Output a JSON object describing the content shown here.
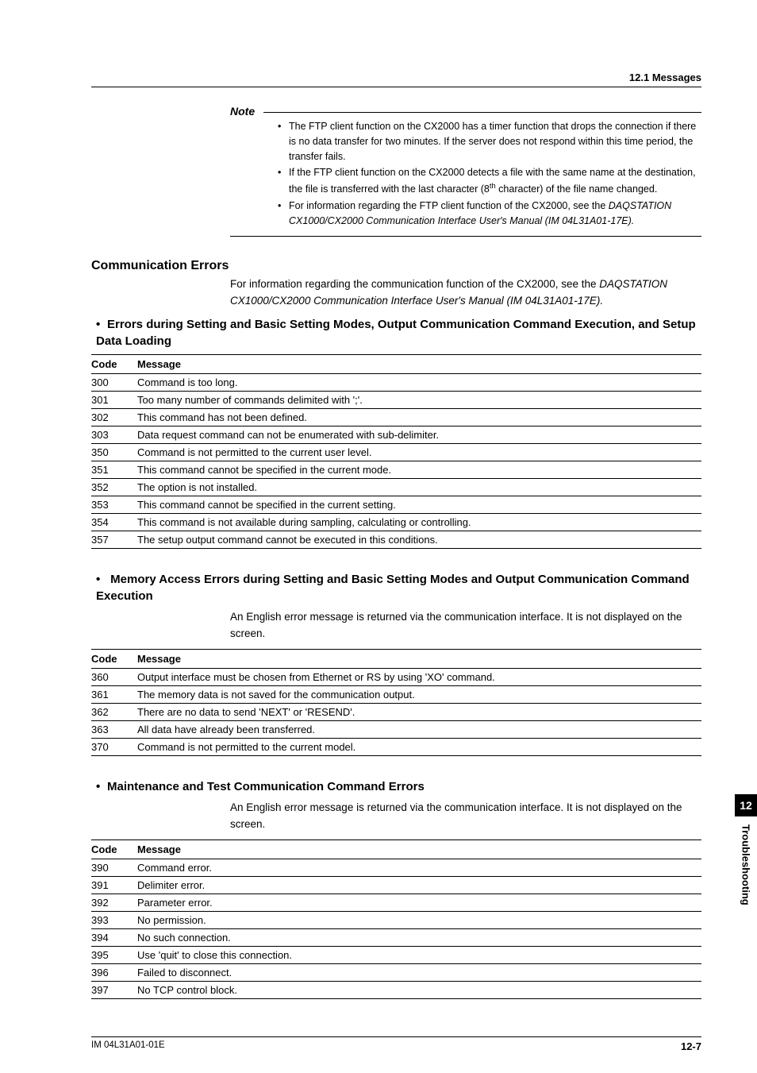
{
  "header": {
    "section": "12.1  Messages"
  },
  "note": {
    "label": "Note",
    "items": [
      "The FTP client function on the CX2000 has a timer function that drops the connection if there is no data transfer for two minutes.  If the server does not respond within this time period, the transfer fails.",
      "If the FTP client function on the CX2000 detects a file with the same name at the destination, the file is transferred with the last character (8<sup>th</sup> character) of the file name changed.",
      "For information regarding the FTP client function of the CX2000, see the <span class=\"italic\">DAQSTATION CX1000/CX2000 Communication Interface User's Manual (IM 04L31A01-17E).</span>"
    ]
  },
  "comm_errors": {
    "title": "Communication Errors",
    "intro_plain": "For information regarding the communication function of the CX2000, see the ",
    "intro_italic": "DAQSTATION CX1000/CX2000 Communication Interface User's Manual (IM 04L31A01-17E)."
  },
  "sec1": {
    "title": "Errors during Setting and Basic Setting Modes, Output Communication Command Execution, and Setup Data Loading",
    "col_code": "Code",
    "col_msg": "Message",
    "rows": [
      {
        "code": "300",
        "msg": "Command is too long."
      },
      {
        "code": "301",
        "msg": "Too many number of commands delimited with ';'."
      },
      {
        "code": "302",
        "msg": "This command has not been defined."
      },
      {
        "code": "303",
        "msg": "Data request command can not be enumerated with sub-delimiter."
      },
      {
        "code": "350",
        "msg": "Command is not permitted to the current user level."
      },
      {
        "code": "351",
        "msg": "This command cannot be specified in the current mode."
      },
      {
        "code": "352",
        "msg": "The option is not installed."
      },
      {
        "code": "353",
        "msg": "This command cannot be specified in the current setting."
      },
      {
        "code": "354",
        "msg": "This command is not available during sampling, calculating or controlling."
      },
      {
        "code": "357",
        "msg": "The setup output command cannot be executed in this conditions."
      }
    ]
  },
  "sec2": {
    "title": "Memory Access Errors during Setting and Basic Setting Modes and Output Communication Command Execution",
    "intro": "An English error message is returned via the communication interface.  It is not displayed on the screen.",
    "col_code": "Code",
    "col_msg": "Message",
    "rows": [
      {
        "code": "360",
        "msg": "Output interface must be chosen from Ethernet or RS by using 'XO' command."
      },
      {
        "code": "361",
        "msg": "The memory data is not saved for the communication output."
      },
      {
        "code": "362",
        "msg": "There are no data to send 'NEXT' or 'RESEND'."
      },
      {
        "code": "363",
        "msg": "All data have already been transferred."
      },
      {
        "code": "370",
        "msg": "Command is not permitted to the current model."
      }
    ]
  },
  "sec3": {
    "title": "Maintenance and Test Communication Command Errors",
    "intro": "An English error message is returned via the communication interface.  It is not displayed on the screen.",
    "col_code": "Code",
    "col_msg": "Message",
    "rows": [
      {
        "code": "390",
        "msg": "Command error."
      },
      {
        "code": "391",
        "msg": "Delimiter error."
      },
      {
        "code": "392",
        "msg": "Parameter error."
      },
      {
        "code": "393",
        "msg": "No permission."
      },
      {
        "code": "394",
        "msg": "No such connection."
      },
      {
        "code": "395",
        "msg": "Use 'quit' to close this connection."
      },
      {
        "code": "396",
        "msg": "Failed to disconnect."
      },
      {
        "code": "397",
        "msg": "No TCP control block."
      }
    ]
  },
  "side": {
    "number": "12",
    "label": "Troubleshooting"
  },
  "footer": {
    "doc": "IM 04L31A01-01E",
    "page": "12-7"
  }
}
